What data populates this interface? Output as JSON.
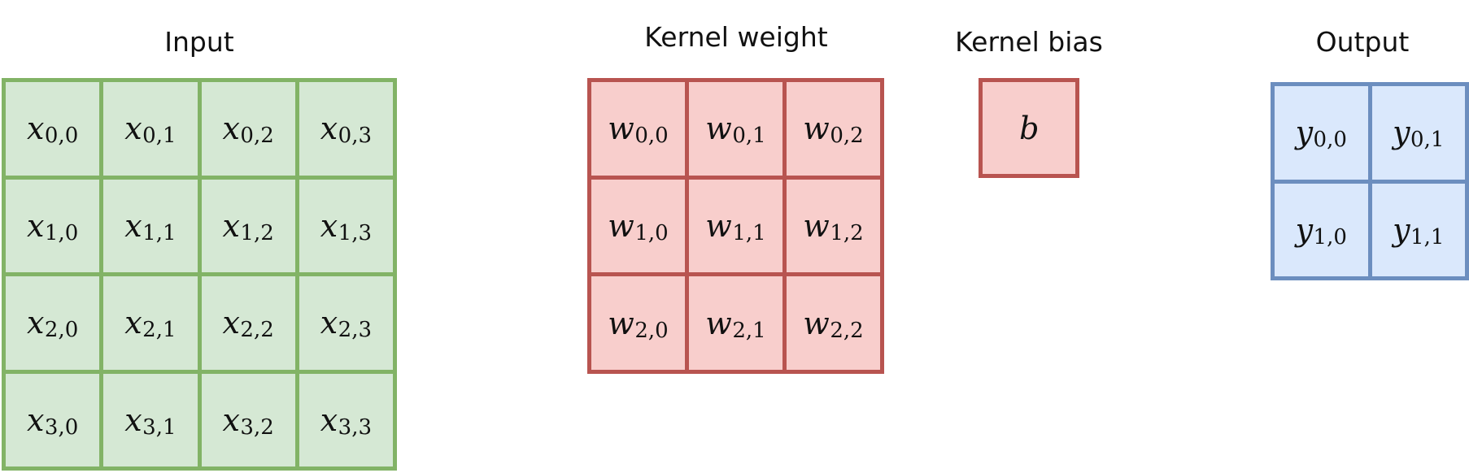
{
  "titles": {
    "input": "Input",
    "kernel_weight": "Kernel weight",
    "kernel_bias": "Kernel bias",
    "output": "Output"
  },
  "colors": {
    "input_fill": "#d5e8d4",
    "input_stroke": "#82b366",
    "kernel_fill": "#f8cecc",
    "kernel_stroke": "#b85450",
    "output_fill": "#dae8fc",
    "output_stroke": "#6c8ebf"
  },
  "input": {
    "symbol": "x",
    "cells": [
      [
        "0,0",
        "0,1",
        "0,2",
        "0,3"
      ],
      [
        "1,0",
        "1,1",
        "1,2",
        "1,3"
      ],
      [
        "2,0",
        "2,1",
        "2,2",
        "2,3"
      ],
      [
        "3,0",
        "3,1",
        "3,2",
        "3,3"
      ]
    ]
  },
  "kernel_weight": {
    "symbol": "w",
    "cells": [
      [
        "0,0",
        "0,1",
        "0,2"
      ],
      [
        "1,0",
        "1,1",
        "1,2"
      ],
      [
        "2,0",
        "2,1",
        "2,2"
      ]
    ]
  },
  "kernel_bias": {
    "symbol": "b"
  },
  "output": {
    "symbol": "y",
    "cells": [
      [
        "0,0",
        "0,1"
      ],
      [
        "1,0",
        "1,1"
      ]
    ]
  }
}
